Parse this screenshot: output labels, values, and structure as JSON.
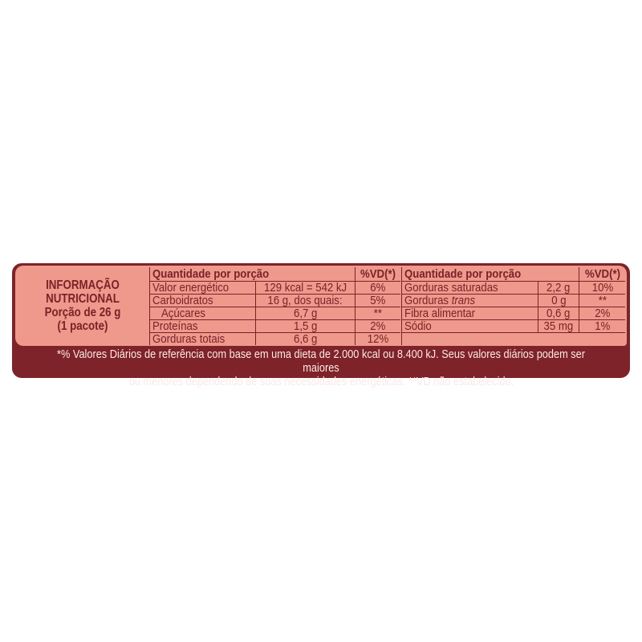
{
  "title": {
    "line1": "INFORMAÇÃO",
    "line2": "NUTRICIONAL",
    "line3": "Porção de 26 g",
    "line4": "(1 pacote)"
  },
  "colors": {
    "frame": "#7e2329",
    "panel": "#ee998c",
    "text": "#7a2228"
  },
  "left_table": {
    "header": {
      "name": "Quantidade por porção",
      "vd": "%VD(*)"
    },
    "rows": [
      {
        "name": "Valor energético",
        "value": "129 kcal = 542 kJ",
        "vd": "6%"
      },
      {
        "name": "Carboidratos",
        "value": "16 g, dos quais:",
        "vd": "5%"
      },
      {
        "name": "  Açúcares",
        "value": "6,7 g",
        "vd": "**"
      },
      {
        "name": "Proteínas",
        "value": "1,5 g",
        "vd": "2%"
      },
      {
        "name": "Gorduras totais",
        "value": "6,6 g",
        "vd": "12%"
      }
    ]
  },
  "right_table": {
    "header": {
      "name": "Quantidade por porção",
      "vd": "%VD(*)"
    },
    "rows": [
      {
        "name": "Gorduras saturadas",
        "value": "2,2 g",
        "vd": "10%"
      },
      {
        "name_prefix": "Gorduras ",
        "name_italic": "trans",
        "value": "0 g",
        "vd": "**"
      },
      {
        "name": "Fibra alimentar",
        "value": "0,6 g",
        "vd": "2%"
      },
      {
        "name": "Sódio",
        "value": "35 mg",
        "vd": "1%"
      }
    ]
  },
  "footnote": {
    "line1": "*% Valores Diários de referência com base em uma dieta de 2.000 kcal ou 8.400 kJ. Seus valores diários podem ser maiores",
    "line2": "ou menores dependendo de suas necessidades energéticas. **VD não estabelecido."
  }
}
